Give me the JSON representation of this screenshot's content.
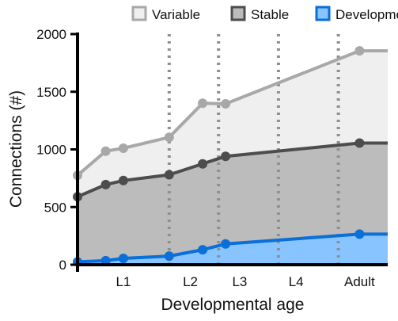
{
  "chart_data": {
    "type": "line",
    "title": "",
    "xlabel": "Developmental age",
    "ylabel": "Connections (#)",
    "x": [
      0,
      0.8,
      1.3,
      2.6,
      3.55,
      4.2,
      8.0
    ],
    "xlim": [
      0,
      8.8
    ],
    "ylim": [
      0,
      2000
    ],
    "yticks": [
      0,
      500,
      1000,
      1500,
      2000
    ],
    "xticks": [
      {
        "label": "L1",
        "x": 1.3
      },
      {
        "label": "L2",
        "x": 3.2
      },
      {
        "label": "L3",
        "x": 4.6
      },
      {
        "label": "L4",
        "x": 6.2
      },
      {
        "label": "Adult",
        "x": 8.0
      }
    ],
    "stage_boundaries": [
      2.6,
      4.0,
      5.7,
      7.4
    ],
    "series": [
      {
        "name": "Variable",
        "values": [
          775,
          985,
          1010,
          1105,
          1400,
          1395,
          1855
        ],
        "line_color": "#a8a8a8",
        "fill_color": "#efefef"
      },
      {
        "name": "Stable",
        "values": [
          590,
          695,
          730,
          780,
          875,
          940,
          1055
        ],
        "line_color": "#4d4d4d",
        "fill_color": "#bcbcbc"
      },
      {
        "name": "Developmental",
        "values": [
          25,
          35,
          55,
          75,
          130,
          180,
          265
        ],
        "line_color": "#0a6fd8",
        "fill_color": "#88c4ff"
      }
    ],
    "legend_position": "top",
    "grid": false
  }
}
